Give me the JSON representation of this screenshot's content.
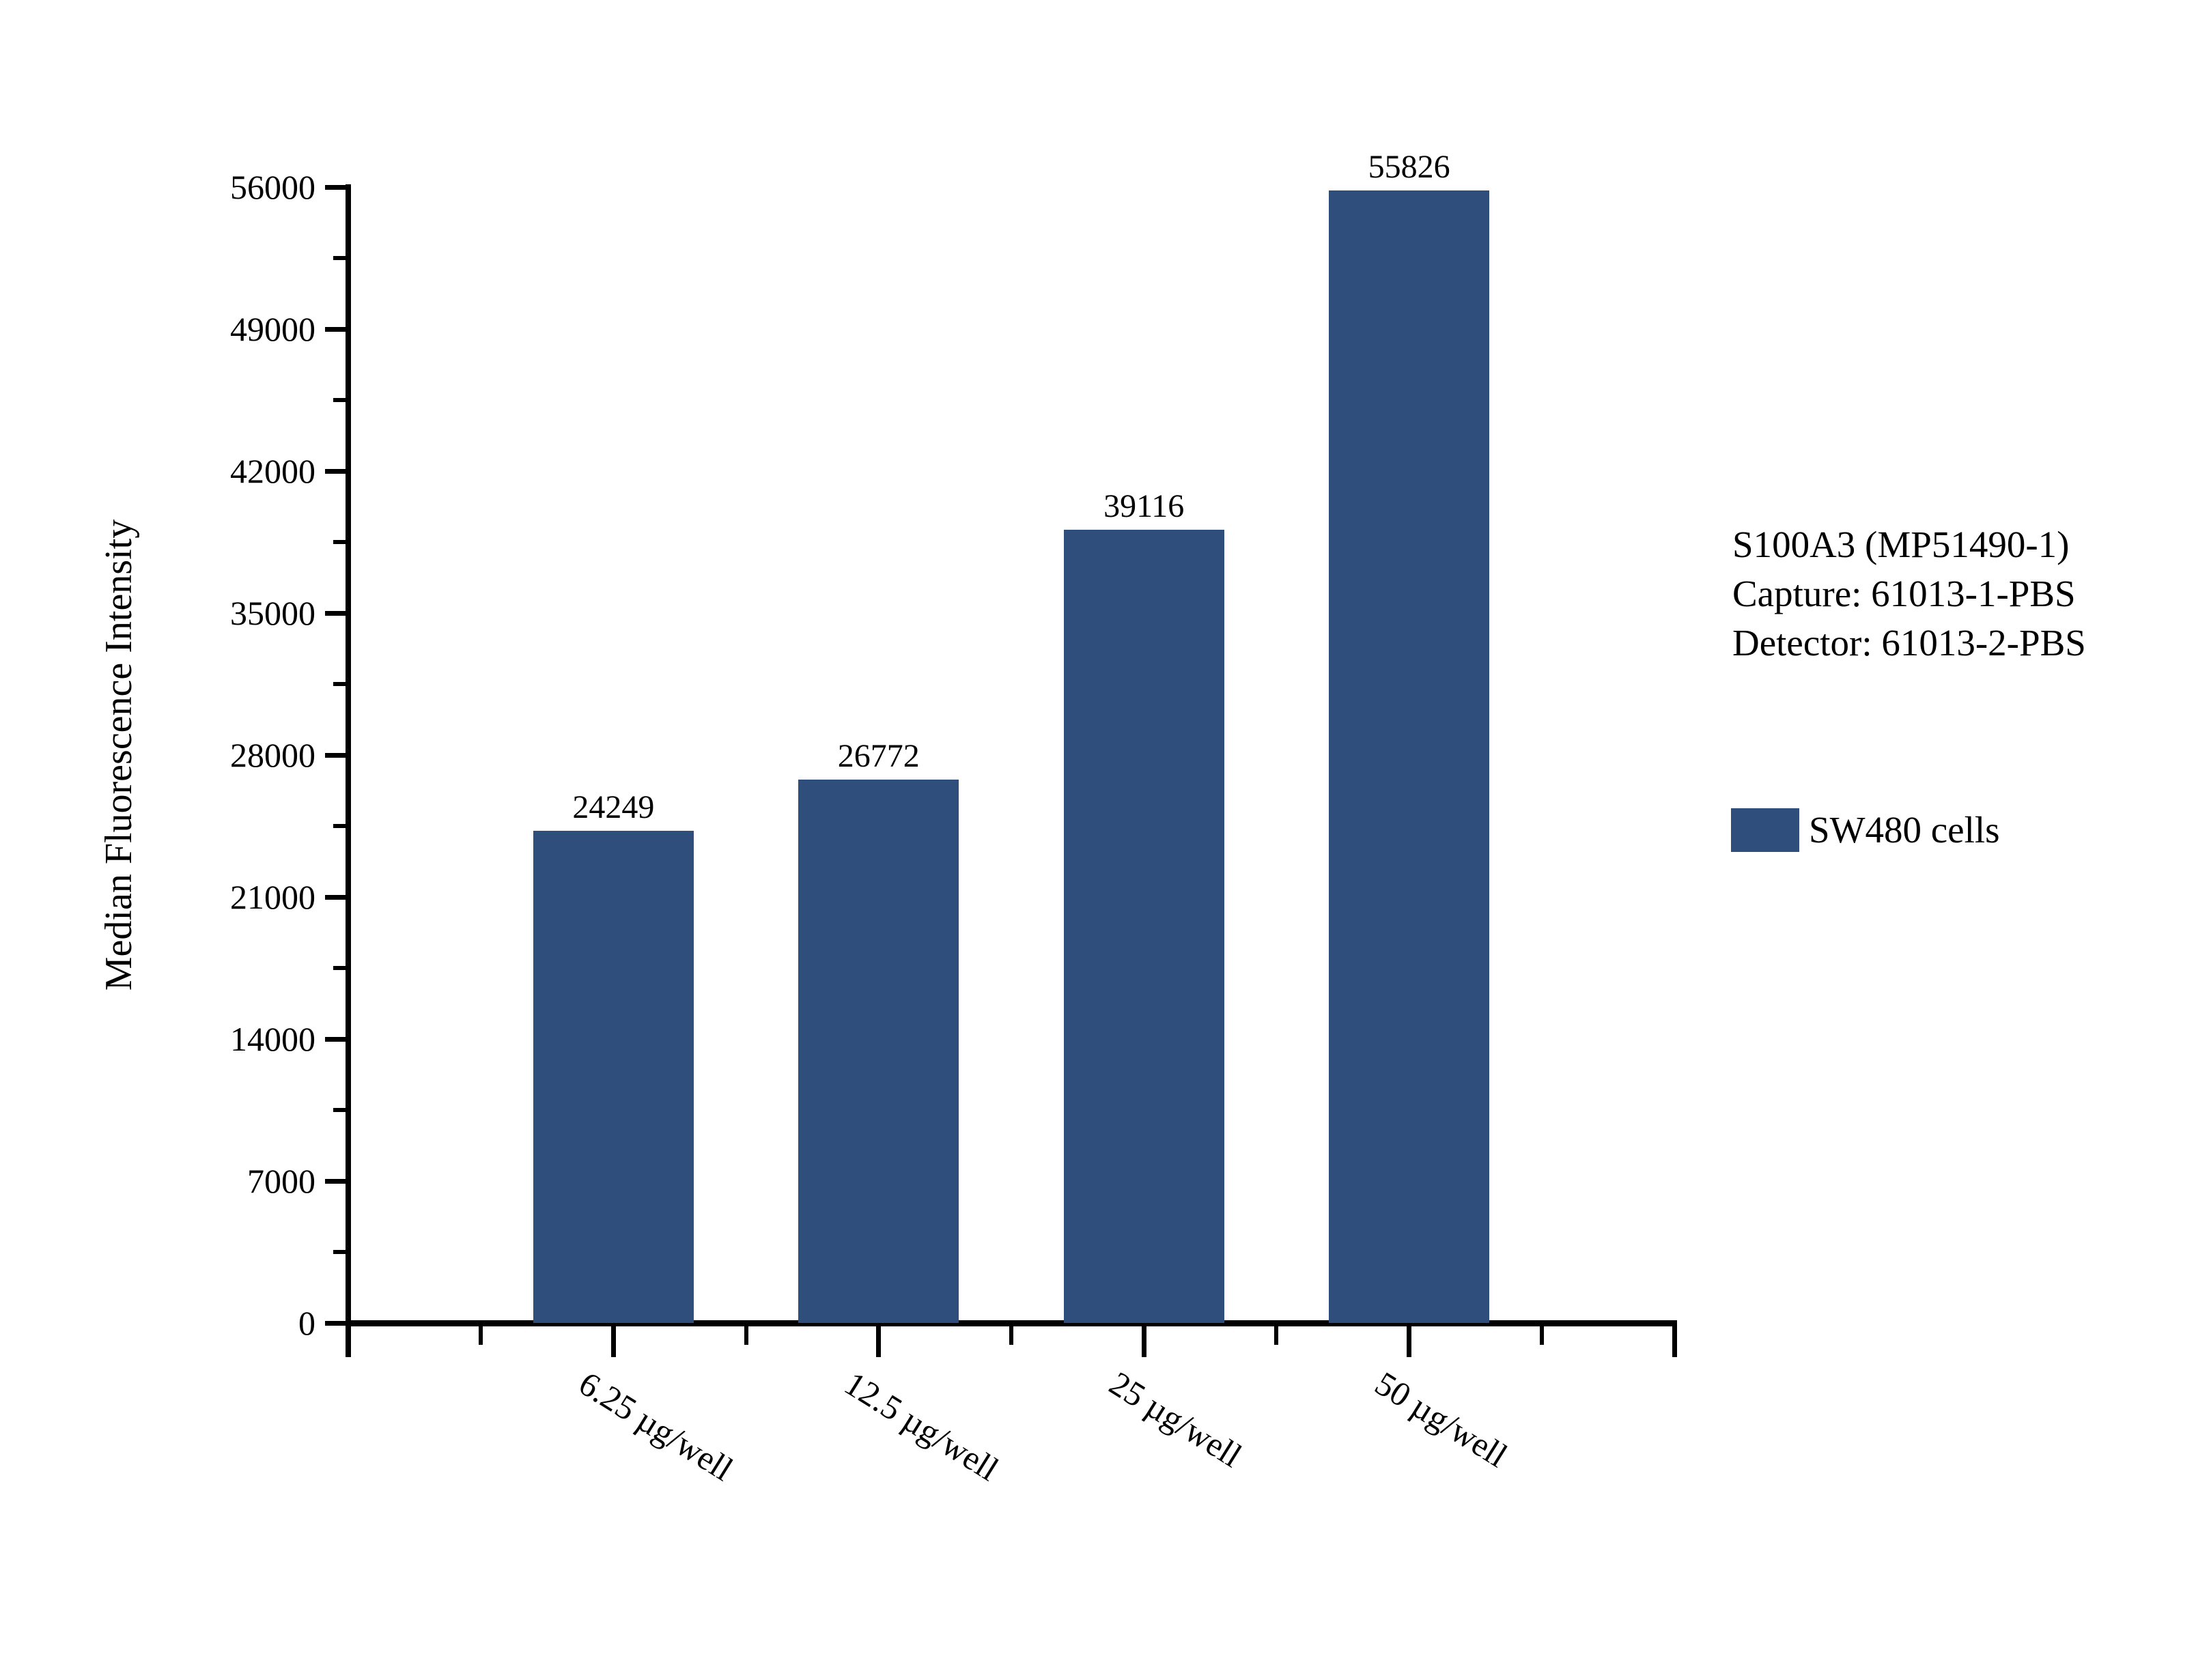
{
  "chart_data": {
    "type": "bar",
    "categories": [
      "6.25 µg/well",
      "12.5 µg/well",
      "25 µg/well",
      "50 µg/well"
    ],
    "series": [
      {
        "name": "SW480 cells",
        "values": [
          24249,
          26772,
          39116,
          55826
        ]
      }
    ],
    "value_labels": [
      "24249",
      "26772",
      "39116",
      "55826"
    ],
    "title": "",
    "xlabel": "",
    "ylabel": "Median Fluorescence Intensity",
    "ylim": [
      0,
      56000
    ],
    "y_major_step": 7000,
    "y_minor_step": 3500,
    "y_tick_labels": [
      "0",
      "7000",
      "14000",
      "21000",
      "28000",
      "35000",
      "42000",
      "49000",
      "56000"
    ],
    "grid": false,
    "legend_position": "right",
    "bar_color": "#2F4E7B",
    "axis_color": "#000000"
  },
  "y_axis": {
    "title": "Median Fluorescence Intensity"
  },
  "annotation": {
    "lines": [
      "S100A3 (MP51490-1)",
      "Capture: 61013-1-PBS",
      "Detector: 61013-2-PBS"
    ]
  },
  "legend": {
    "label": "SW480 cells",
    "swatch_color": "#2F4E7B"
  }
}
